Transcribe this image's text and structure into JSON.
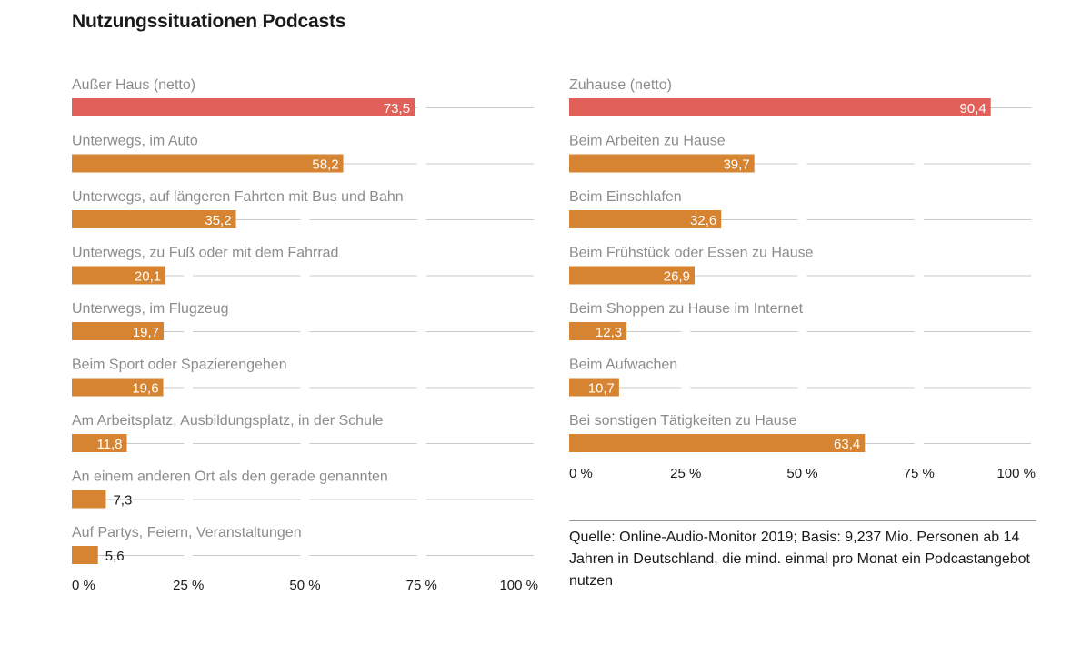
{
  "title": "Nutzungssituationen Podcasts",
  "colors": {
    "highlight": "#e2605a",
    "bar": "#d68431",
    "grid": "#c9c9c9",
    "label": "#8c8c8c",
    "text": "#1a1a1a"
  },
  "source": "Quelle: Online-Audio-Monitor 2019; Basis: 9,237 Mio. Personen ab 14 Jahren in Deutschland, die mind. einmal pro Monat ein Podcastangebot nutzen",
  "chart_data": [
    {
      "type": "bar",
      "orientation": "horizontal",
      "title": "",
      "xlim": [
        0,
        100
      ],
      "ticks": [
        0,
        25,
        50,
        75,
        100
      ],
      "tick_labels": [
        "0 %",
        "25 %",
        "50 %",
        "75 %",
        "100 %"
      ],
      "grid": true,
      "categories": [
        "Außer Haus (netto)",
        "Unterwegs, im Auto",
        "Unterwegs, auf längeren Fahrten mit Bus und Bahn",
        "Unterwegs, zu Fuß oder mit dem Fahrrad",
        "Unterwegs, im Flugzeug",
        "Beim Sport oder Spazierengehen",
        "Am Arbeitsplatz, Ausbildungsplatz, in der Schule",
        "An einem anderen Ort als den gerade genannten",
        "Auf Partys, Feiern, Veranstaltungen"
      ],
      "values": [
        73.5,
        58.2,
        35.2,
        20.1,
        19.7,
        19.6,
        11.8,
        7.3,
        5.6
      ],
      "value_labels": [
        "73,5",
        "58,2",
        "35,2",
        "20,1",
        "19,7",
        "19,6",
        "11,8",
        "7,3",
        "5,6"
      ],
      "highlight": [
        true,
        false,
        false,
        false,
        false,
        false,
        false,
        false,
        false
      ]
    },
    {
      "type": "bar",
      "orientation": "horizontal",
      "title": "",
      "xlim": [
        0,
        100
      ],
      "ticks": [
        0,
        25,
        50,
        75,
        100
      ],
      "tick_labels": [
        "0 %",
        "25 %",
        "50 %",
        "75 %",
        "100 %"
      ],
      "grid": true,
      "categories": [
        "Zuhause (netto)",
        "Beim Arbeiten zu Hause",
        "Beim Einschlafen",
        "Beim Frühstück oder Essen zu Hause",
        "Beim Shoppen zu Hause im Internet",
        "Beim Aufwachen",
        "Bei sonstigen Tätigkeiten zu Hause"
      ],
      "values": [
        90.4,
        39.7,
        32.6,
        26.9,
        12.3,
        10.7,
        63.4
      ],
      "value_labels": [
        "90,4",
        "39,7",
        "32,6",
        "26,9",
        "12,3",
        "10,7",
        "63,4"
      ],
      "highlight": [
        true,
        false,
        false,
        false,
        false,
        false,
        false
      ]
    }
  ]
}
